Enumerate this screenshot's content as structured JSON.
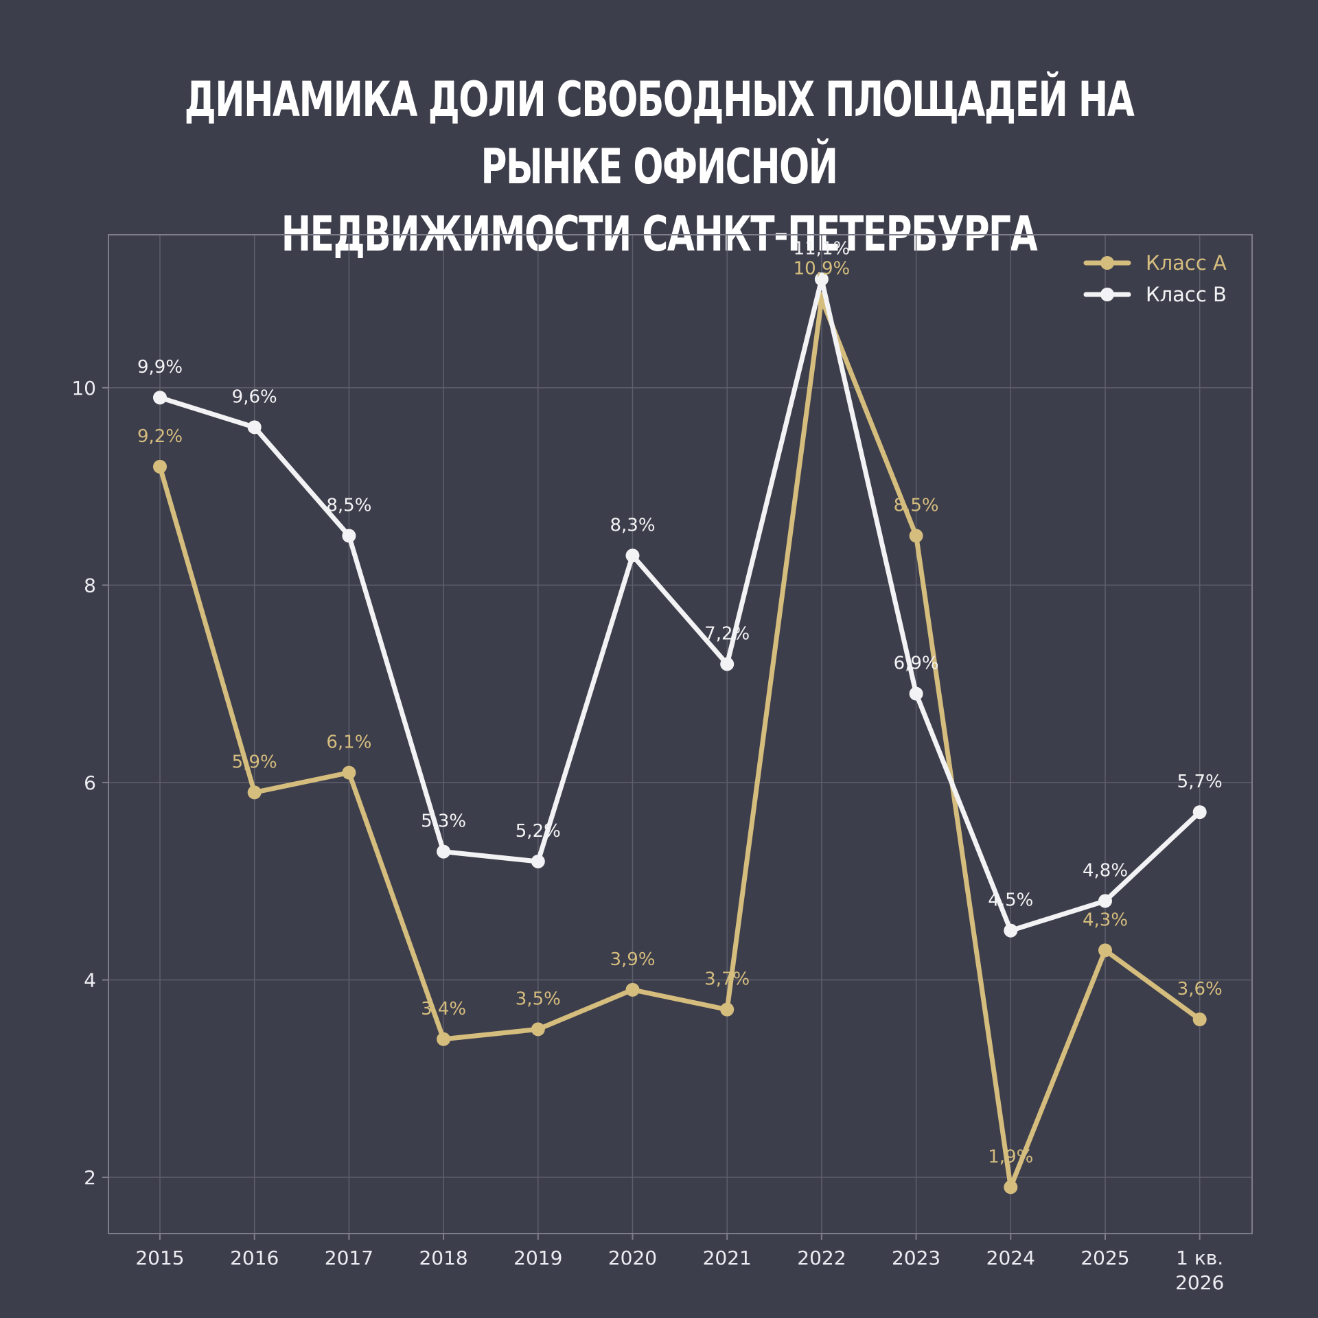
{
  "title": {
    "line1": "ДИНАМИКА ДОЛИ СВОБОДНЫХ ПЛОЩАДЕЙ НА РЫНКЕ ОФИСНОЙ",
    "line2": "НЕДВИЖИМОСТИ САНКТ-ПЕТЕРБУРГА"
  },
  "colors": {
    "background": "#3d3e4b",
    "class_a": "#d5bd7e",
    "class_b": "#f3f3f5",
    "grid": "#5e5f6c",
    "frame": "#7d7e8a",
    "tick_text": "#ecedf2"
  },
  "chart_data": {
    "type": "line",
    "title": "ДИНАМИКА ДОЛИ СВОБОДНЫХ ПЛОЩАДЕЙ НА РЫНКЕ ОФИСНОЙ НЕДВИЖИМОСТИ САНКТ-ПЕТЕРБУРГА",
    "categories": [
      "2015",
      "2016",
      "2017",
      "2018",
      "2019",
      "2020",
      "2021",
      "2022",
      "2023",
      "2024",
      "2025",
      "1 кв.\n2026"
    ],
    "series": [
      {
        "name": "Класс А",
        "color": "#d5bd7e",
        "values": [
          9.2,
          5.9,
          6.1,
          3.4,
          3.5,
          3.9,
          3.7,
          10.9,
          8.5,
          1.9,
          4.3,
          3.6
        ],
        "labels": [
          "9,2%",
          "5,9%",
          "6,1%",
          "3,4%",
          "3,5%",
          "3,9%",
          "3,7%",
          "10,9%",
          "8,5%",
          "1,9%",
          "4,3%",
          "3,6%"
        ]
      },
      {
        "name": "Класс В",
        "color": "#f3f3f5",
        "values": [
          9.9,
          9.6,
          8.5,
          5.3,
          5.2,
          8.3,
          7.2,
          11.1,
          6.9,
          4.5,
          4.8,
          5.7
        ],
        "labels": [
          "9,9%",
          "9,6%",
          "8,5%",
          "5,3%",
          "5,2%",
          "8,3%",
          "7,2%",
          "11,1%",
          "6,9%",
          "4,5%",
          "4,8%",
          "5,7%"
        ]
      }
    ],
    "yticks": [
      "2",
      "4",
      "6",
      "8",
      "10"
    ],
    "ylim": [
      1.43,
      11.55
    ],
    "grid": true,
    "legend": "top-right",
    "xlabel": "",
    "ylabel": ""
  }
}
